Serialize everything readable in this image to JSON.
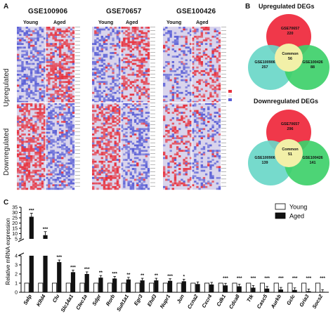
{
  "panelA": {
    "letter": "A",
    "datasets": [
      "GSE100906",
      "GSE70657",
      "GSE100426"
    ],
    "groups": [
      "Young",
      "Aged"
    ],
    "row_labels": [
      "Upregulated",
      "Downregulated"
    ],
    "colors": {
      "high": "#e8303c",
      "mid": "#d9d4ec",
      "low": "#5a5fd6"
    }
  },
  "panelB": {
    "letter": "B",
    "up": {
      "title": "Upregulated DEGs",
      "top": "GSE70657",
      "top_n": "220",
      "left": "GSE100906",
      "left_n": "257",
      "right": "GSE100426",
      "right_n": "88",
      "center": "Common",
      "center_n": "56"
    },
    "down": {
      "title": "Downregulated DEGs",
      "top": "GSE70657",
      "top_n": "296",
      "left": "GSE100906",
      "left_n": "139",
      "right": "GSE100426",
      "right_n": "141",
      "center": "Common",
      "center_n": "51"
    },
    "colors": {
      "red": "#f0384a",
      "green": "#3ed06a",
      "cyan": "#6ad7c8",
      "common": "#f2f0a8"
    }
  },
  "panelC": {
    "letter": "C",
    "ylabel": "Relative mRNA expression",
    "legend": [
      {
        "name": "Young",
        "fill": "#ffffff"
      },
      {
        "name": "Aged",
        "fill": "#111111"
      }
    ]
  },
  "chart_data": {
    "type": "bar",
    "ylabel": "Relative mRNA expression",
    "y_axis_break": true,
    "y_ticks_lower": [
      "0",
      "1",
      "2",
      "3",
      "4"
    ],
    "y_ticks_upper": [
      "5",
      "10",
      "15",
      "20",
      "25",
      "30",
      "35"
    ],
    "categories": [
      "Selp",
      "Klhl4",
      "Clu",
      "Slc14a1",
      "Clec1a",
      "Sdpr",
      "Rorb",
      "Sult1a1",
      "Egr3",
      "Ehd3",
      "Nupr1",
      "Jun",
      "Ccna2",
      "Cxcr4",
      "Cdk1",
      "Cdca8",
      "Ttk",
      "Casc5",
      "Aurkb",
      "Gclc",
      "Gria3",
      "Socs2"
    ],
    "series": [
      {
        "name": "Young",
        "values": [
          1,
          1,
          1,
          1,
          1,
          1,
          1,
          1,
          1,
          1,
          1,
          1,
          1,
          1,
          1,
          1,
          1,
          1,
          1,
          1,
          1,
          1
        ]
      },
      {
        "name": "Aged",
        "values": [
          26,
          8.5,
          3.3,
          2.2,
          2.0,
          1.6,
          1.5,
          1.4,
          1.3,
          1.3,
          1.25,
          1.2,
          0.9,
          0.85,
          0.75,
          0.65,
          0.5,
          0.4,
          0.3,
          0.25,
          0.12,
          0.05
        ]
      }
    ],
    "significance": [
      "***",
      "***",
      "***",
      "***",
      "***",
      "**",
      "***",
      "**",
      "**",
      "**",
      "***",
      "*",
      "",
      "",
      "***",
      "***",
      "***",
      "***",
      "***",
      "***",
      "***",
      "***"
    ]
  }
}
